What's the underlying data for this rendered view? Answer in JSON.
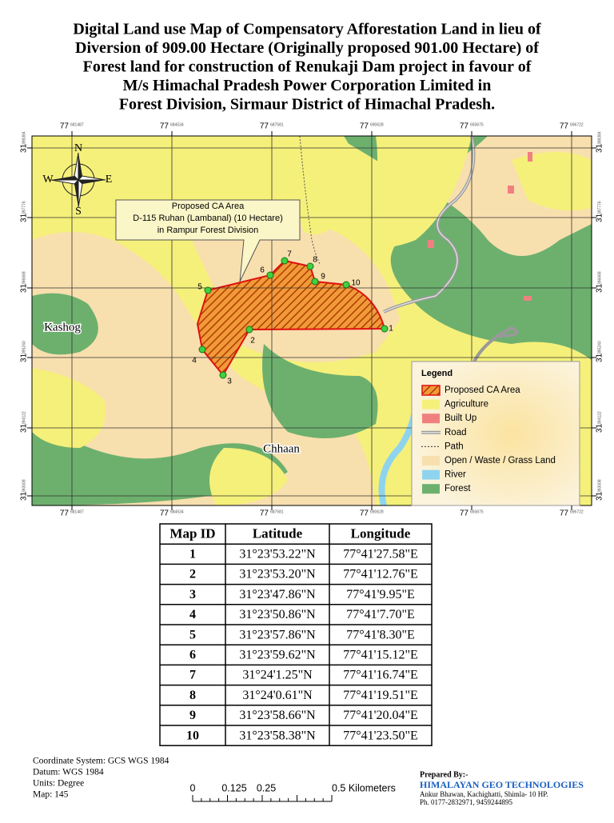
{
  "title": [
    "Digital Land use Map of Compensatory Afforestation Land in lieu of",
    "Diversion of 909.00 Hectare (Originally proposed 901.00 Hectare) of",
    "Forest land for construction of Renukaji Dam project in favour of",
    "M/s Himachal Pradesh Power Corporation Limited in",
    "Forest Division, Sirmaur District of Himachal Pradesh."
  ],
  "map": {
    "lon_labels": [
      {
        "deg": "77",
        "min": "681487"
      },
      {
        "deg": "77",
        "min": "684534"
      },
      {
        "deg": "77",
        "min": "687581"
      },
      {
        "deg": "77",
        "min": "690628"
      },
      {
        "deg": "77",
        "min": "693675"
      },
      {
        "deg": "77",
        "min": "696722"
      }
    ],
    "lat_labels": [
      {
        "deg": "31",
        "min": "398384"
      },
      {
        "deg": "31",
        "min": "397776"
      },
      {
        "deg": "31",
        "min": "396668"
      },
      {
        "deg": "31",
        "min": "395240"
      },
      {
        "deg": "31",
        "min": "394122"
      },
      {
        "deg": "31",
        "min": "393008"
      }
    ],
    "places": [
      "Kashog",
      "Chhaan"
    ],
    "callout": [
      "Proposed CA Area",
      "D-115 Ruhan (Lambanal) (10 Hectare)",
      "in Rampur Forest Division"
    ],
    "points": [
      "1",
      "2",
      "3",
      "4",
      "5",
      "6",
      "7",
      "8",
      "9",
      "10"
    ]
  },
  "legend": {
    "title": "Legend",
    "items": [
      "Proposed CA Area",
      "Agriculture",
      "Built Up",
      "Road",
      "Path",
      "Open / Waste / Grass Land",
      "River",
      "Forest"
    ]
  },
  "table": {
    "header": [
      "Map ID",
      "Latitude",
      "Longitude"
    ],
    "rows": [
      [
        "1",
        "31°23'53.22\"N",
        "77°41'27.58\"E"
      ],
      [
        "2",
        "31°23'53.20\"N",
        "77°41'12.76\"E"
      ],
      [
        "3",
        "31°23'47.86\"N",
        "77°41'9.95\"E"
      ],
      [
        "4",
        "31°23'50.86\"N",
        "77°41'7.70\"E"
      ],
      [
        "5",
        "31°23'57.86\"N",
        "77°41'8.30\"E"
      ],
      [
        "6",
        "31°23'59.62\"N",
        "77°41'15.12\"E"
      ],
      [
        "7",
        "31°24'1.25\"N",
        "77°41'16.74\"E"
      ],
      [
        "8",
        "31°24'0.61\"N",
        "77°41'19.51\"E"
      ],
      [
        "9",
        "31°23'58.66\"N",
        "77°41'20.04\"E"
      ],
      [
        "10",
        "31°23'58.38\"N",
        "77°41'23.50\"E"
      ]
    ]
  },
  "footer": {
    "info": [
      "Coordinate System: GCS WGS 1984",
      "Datum: WGS 1984",
      "Units: Degree",
      "Map: 145"
    ],
    "scale": [
      "0",
      "0.125",
      "0.25",
      "0.5 Kilometers"
    ],
    "credit": {
      "label": "Prepared By:-",
      "org": "HIMALAYAN GEO TECHNOLOGIES",
      "address": "Ankur Bhawan, Kachighatti, Shimla- 10 HP.",
      "phone": "Ph. 0177-2832971, 9459244895"
    }
  }
}
